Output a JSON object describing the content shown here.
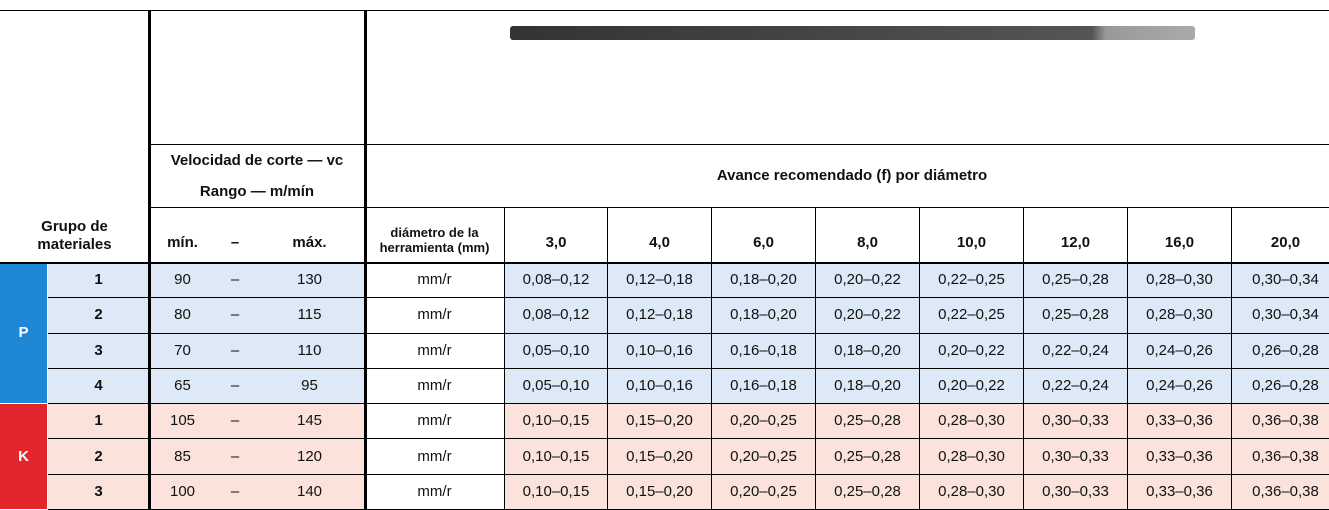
{
  "header": {
    "group_label": "Grupo de materiales",
    "vc_title": "Velocidad de corte — vc",
    "vc_range": "Rango — m/mín",
    "feed_title": "Avance recomendado (f) por diámetro",
    "min": "mín.",
    "dash": "–",
    "max": "máx.",
    "diameter_label": "diámetro de la herramienta (mm)",
    "diameters": [
      "3,0",
      "4,0",
      "6,0",
      "8,0",
      "10,0",
      "12,0",
      "16,0",
      "20,0"
    ]
  },
  "groups": [
    {
      "letter": "P",
      "rows": [
        {
          "num": "1",
          "min": 90,
          "sep": "–",
          "max": 130,
          "unit": "mm/r",
          "feeds": [
            "0,08–0,12",
            "0,12–0,18",
            "0,18–0,20",
            "0,20–0,22",
            "0,22–0,25",
            "0,25–0,28",
            "0,28–0,30",
            "0,30–0,34"
          ]
        },
        {
          "num": "2",
          "min": 80,
          "sep": "–",
          "max": 115,
          "unit": "mm/r",
          "feeds": [
            "0,08–0,12",
            "0,12–0,18",
            "0,18–0,20",
            "0,20–0,22",
            "0,22–0,25",
            "0,25–0,28",
            "0,28–0,30",
            "0,30–0,34"
          ]
        },
        {
          "num": "3",
          "min": 70,
          "sep": "–",
          "max": 110,
          "unit": "mm/r",
          "feeds": [
            "0,05–0,10",
            "0,10–0,16",
            "0,16–0,18",
            "0,18–0,20",
            "0,20–0,22",
            "0,22–0,24",
            "0,24–0,26",
            "0,26–0,28"
          ]
        },
        {
          "num": "4",
          "min": 65,
          "sep": "–",
          "max": 95,
          "unit": "mm/r",
          "feeds": [
            "0,05–0,10",
            "0,10–0,16",
            "0,16–0,18",
            "0,18–0,20",
            "0,20–0,22",
            "0,22–0,24",
            "0,24–0,26",
            "0,26–0,28"
          ]
        }
      ]
    },
    {
      "letter": "K",
      "rows": [
        {
          "num": "1",
          "min": 105,
          "sep": "–",
          "max": 145,
          "unit": "mm/r",
          "feeds": [
            "0,10–0,15",
            "0,15–0,20",
            "0,20–0,25",
            "0,25–0,28",
            "0,28–0,30",
            "0,30–0,33",
            "0,33–0,36",
            "0,36–0,38"
          ]
        },
        {
          "num": "2",
          "min": 85,
          "sep": "–",
          "max": 120,
          "unit": "mm/r",
          "feeds": [
            "0,10–0,15",
            "0,15–0,20",
            "0,20–0,25",
            "0,25–0,28",
            "0,28–0,30",
            "0,30–0,33",
            "0,33–0,36",
            "0,36–0,38"
          ]
        },
        {
          "num": "3",
          "min": 100,
          "sep": "–",
          "max": 140,
          "unit": "mm/r",
          "feeds": [
            "0,10–0,15",
            "0,15–0,20",
            "0,20–0,25",
            "0,25–0,28",
            "0,28–0,30",
            "0,30–0,33",
            "0,33–0,36",
            "0,36–0,38"
          ]
        }
      ]
    }
  ]
}
